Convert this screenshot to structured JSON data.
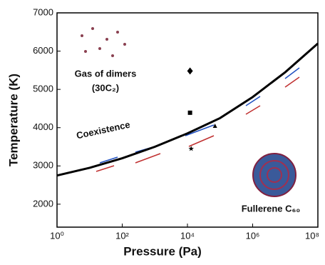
{
  "chart_data": {
    "type": "line",
    "x_label": "Pressure (Pa)",
    "y_label": "Temperature (K)",
    "x_scale": "log",
    "xlim": [
      1,
      100000000
    ],
    "ylim": [
      1400,
      7000
    ],
    "xticks": [
      {
        "value": 1,
        "label": "10⁰"
      },
      {
        "value": 100,
        "label": "10²"
      },
      {
        "value": 10000,
        "label": "10⁴"
      },
      {
        "value": 1000000,
        "label": "10⁶"
      },
      {
        "value": 100000000,
        "label": "10⁸"
      }
    ],
    "yticks": [
      2000,
      3000,
      4000,
      5000,
      6000,
      7000
    ],
    "x": [
      1,
      10,
      100,
      1000,
      10000,
      100000,
      1000000,
      10000000,
      100000000
    ],
    "series": [
      {
        "color": "#000000",
        "values": [
          2750,
          2950,
          3200,
          3500,
          3850,
          4250,
          4800,
          5450,
          6200
        ]
      }
    ],
    "points": [
      {
        "marker": "diamond",
        "x": 12000,
        "y": 5480
      },
      {
        "marker": "square",
        "x": 12000,
        "y": 4390
      },
      {
        "marker": "triangle",
        "x": 70000,
        "y": 4050
      },
      {
        "marker": "star",
        "x": 13000,
        "y": 3450
      }
    ],
    "annotations": [
      "Gas of dimers",
      "(30C₂)",
      "Coexistence",
      "Fullerene C₆₀"
    ]
  }
}
